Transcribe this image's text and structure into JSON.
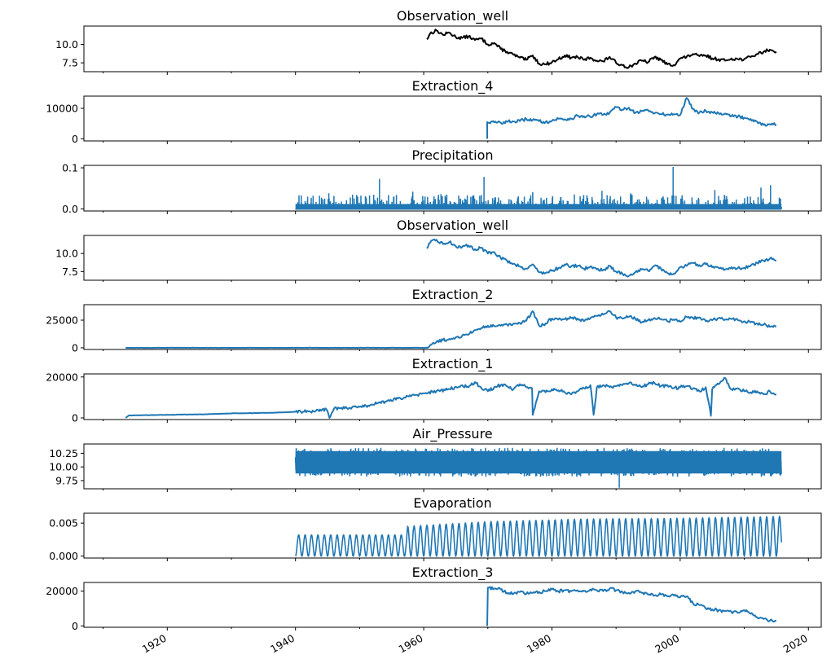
{
  "chart_data": [
    {
      "type": "line",
      "title": "Observation_well",
      "color": "#000000",
      "xlim": [
        1907,
        2022
      ],
      "ylim": [
        6.3,
        12.5
      ],
      "yticks": [
        7.5,
        10.0
      ],
      "ytick_labels": [
        "7.5",
        "10.0"
      ],
      "series": [
        {
          "x": [
            1960.5,
            1961,
            1962,
            1963,
            1964,
            1965,
            1966,
            1967,
            1968,
            1969,
            1970,
            1971,
            1972,
            1973,
            1974,
            1975,
            1976,
            1977,
            1978,
            1979,
            1980,
            1981,
            1982,
            1983,
            1984,
            1985,
            1986,
            1987,
            1988,
            1989,
            1990,
            1991,
            1992,
            1993,
            1994,
            1995,
            1996,
            1997,
            1998,
            1999,
            2000,
            2001,
            2002,
            2003,
            2004,
            2005,
            2006,
            2007,
            2008,
            2009,
            2010,
            2011,
            2012,
            2013,
            2014,
            2015
          ],
          "y": [
            10.7,
            11.5,
            11.9,
            11.3,
            11.6,
            11.0,
            10.9,
            11.1,
            10.6,
            10.8,
            10.0,
            10.2,
            9.4,
            9.0,
            8.6,
            8.2,
            7.9,
            8.5,
            7.4,
            7.3,
            7.6,
            8.0,
            8.5,
            8.2,
            8.3,
            7.9,
            8.2,
            7.8,
            7.7,
            8.3,
            7.5,
            7.2,
            6.9,
            7.4,
            7.8,
            7.6,
            8.3,
            7.9,
            7.3,
            7.2,
            8.1,
            8.3,
            8.7,
            8.4,
            8.5,
            8.1,
            8.0,
            7.8,
            8.1,
            8.0,
            8.0,
            8.3,
            8.7,
            9.0,
            9.3,
            9.0
          ]
        }
      ]
    },
    {
      "type": "line",
      "title": "Extraction_4",
      "color": "#1f77b4",
      "xlim": [
        1907,
        2022
      ],
      "ylim": [
        -700,
        14000
      ],
      "yticks": [
        0,
        10000
      ],
      "ytick_labels": [
        "0",
        "10000"
      ],
      "series": [
        {
          "x": [
            1969.9,
            1969.9,
            1971,
            1972,
            1973,
            1974,
            1975,
            1976,
            1977,
            1978,
            1979,
            1980,
            1981,
            1982,
            1983,
            1984,
            1985,
            1986,
            1987,
            1988,
            1989,
            1990,
            1991,
            1992,
            1993,
            1994,
            1995,
            1996,
            1997,
            1998,
            1999,
            2000,
            2001,
            2002,
            2003,
            2004,
            2005,
            2006,
            2007,
            2008,
            2009,
            2010,
            2011,
            2012,
            2013,
            2014,
            2015
          ],
          "y": [
            0,
            5500,
            5400,
            5300,
            5600,
            5700,
            5800,
            6500,
            6200,
            5800,
            5500,
            5900,
            6600,
            6400,
            6600,
            7500,
            7400,
            7200,
            8100,
            7900,
            8500,
            10400,
            9500,
            10200,
            8500,
            9100,
            9400,
            8400,
            8100,
            7900,
            8100,
            7800,
            13400,
            9800,
            8600,
            9200,
            8700,
            8400,
            8300,
            7500,
            7300,
            6900,
            6500,
            5600,
            4600,
            4800,
            4700
          ]
        }
      ]
    },
    {
      "type": "line",
      "title": "Precipitation",
      "color": "#1f77b4",
      "xlim": [
        1907,
        2022
      ],
      "ylim": [
        -0.005,
        0.106
      ],
      "yticks": [
        0.0,
        0.1
      ],
      "ytick_labels": [
        "0.0",
        "0.1"
      ],
      "range": [
        1940,
        2015.8
      ],
      "spikes": [
        [
          1953.1,
          0.073
        ],
        [
          1969.4,
          0.078
        ],
        [
          1998.9,
          0.102
        ],
        [
          1945.2,
          0.038
        ],
        [
          1958.3,
          0.042
        ],
        [
          1962.7,
          0.036
        ],
        [
          1977.0,
          0.041
        ],
        [
          1983.5,
          0.035
        ],
        [
          1987.8,
          0.044
        ],
        [
          1992.3,
          0.038
        ],
        [
          2005.4,
          0.046
        ],
        [
          2012.6,
          0.052
        ],
        [
          2014.1,
          0.058
        ]
      ]
    },
    {
      "type": "line",
      "title": "Observation_well",
      "color": "#1f77b4",
      "xlim": [
        1907,
        2022
      ],
      "ylim": [
        6.3,
        12.5
      ],
      "yticks": [
        7.5,
        10.0
      ],
      "ytick_labels": [
        "7.5",
        "10.0"
      ],
      "series": [
        {
          "x": [
            1960.5,
            1961,
            1962,
            1963,
            1964,
            1965,
            1966,
            1967,
            1968,
            1969,
            1970,
            1971,
            1972,
            1973,
            1974,
            1975,
            1976,
            1977,
            1978,
            1979,
            1980,
            1981,
            1982,
            1983,
            1984,
            1985,
            1986,
            1987,
            1988,
            1989,
            1990,
            1991,
            1992,
            1993,
            1994,
            1995,
            1996,
            1997,
            1998,
            1999,
            2000,
            2001,
            2002,
            2003,
            2004,
            2005,
            2006,
            2007,
            2008,
            2009,
            2010,
            2011,
            2012,
            2013,
            2014,
            2015
          ],
          "y": [
            10.7,
            11.5,
            11.9,
            11.3,
            11.6,
            11.0,
            10.9,
            11.1,
            10.6,
            10.8,
            10.0,
            10.2,
            9.4,
            9.0,
            8.6,
            8.2,
            7.9,
            8.5,
            7.4,
            7.3,
            7.6,
            8.0,
            8.5,
            8.2,
            8.3,
            7.9,
            8.2,
            7.8,
            7.7,
            8.3,
            7.5,
            7.2,
            6.9,
            7.4,
            7.8,
            7.6,
            8.3,
            7.9,
            7.3,
            7.2,
            8.1,
            8.3,
            8.7,
            8.4,
            8.5,
            8.1,
            8.0,
            7.8,
            8.1,
            8.0,
            8.0,
            8.3,
            8.7,
            9.0,
            9.3,
            9.0
          ]
        }
      ]
    },
    {
      "type": "line",
      "title": "Extraction_2",
      "color": "#1f77b4",
      "xlim": [
        1907,
        2022
      ],
      "ylim": [
        -1500,
        39000
      ],
      "yticks": [
        0,
        25000
      ],
      "ytick_labels": [
        "0",
        "25000"
      ],
      "series": [
        {
          "x": [
            1913.5,
            1960.5,
            1961,
            1962,
            1963,
            1964,
            1965,
            1966,
            1967,
            1968,
            1969,
            1970,
            1971,
            1972,
            1973,
            1974,
            1975,
            1976,
            1977,
            1978,
            1979,
            1980,
            1981,
            1982,
            1983,
            1984,
            1985,
            1986,
            1987,
            1988,
            1989,
            1990,
            1991,
            1992,
            1993,
            1994,
            1995,
            1996,
            1997,
            1998,
            1999,
            2000,
            2001,
            2002,
            2003,
            2004,
            2005,
            2006,
            2007,
            2008,
            2009,
            2010,
            2011,
            2012,
            2013,
            2014,
            2015
          ],
          "y": [
            0,
            0,
            2500,
            5500,
            7000,
            8000,
            9500,
            11000,
            12000,
            16000,
            18000,
            20000,
            19500,
            20000,
            21000,
            22000,
            22500,
            24500,
            33000,
            20000,
            22000,
            26500,
            25500,
            26000,
            27000,
            26500,
            24000,
            27000,
            29000,
            30000,
            33000,
            27500,
            26500,
            28000,
            26500,
            23000,
            25000,
            27000,
            26000,
            24000,
            25500,
            23500,
            28000,
            27000,
            27500,
            24000,
            25000,
            27000,
            25500,
            26000,
            25000,
            24000,
            23000,
            22000,
            21000,
            19000,
            19500
          ]
        }
      ]
    },
    {
      "type": "line",
      "title": "Extraction_1",
      "color": "#1f77b4",
      "xlim": [
        1907,
        2022
      ],
      "ylim": [
        -800,
        21500
      ],
      "yticks": [
        0,
        20000
      ],
      "ytick_labels": [
        "0",
        "20000"
      ],
      "series": [
        {
          "x": [
            1913.5,
            1914,
            1916,
            1918,
            1920,
            1922,
            1924,
            1926,
            1928,
            1930,
            1932,
            1934,
            1936,
            1938,
            1940,
            1942,
            1944,
            1944.8,
            1945.3,
            1946,
            1948,
            1950,
            1952,
            1954,
            1956,
            1958,
            1960,
            1962,
            1964,
            1966,
            1967,
            1968,
            1969,
            1970,
            1971,
            1972,
            1973,
            1974,
            1975,
            1976,
            1976.9,
            1977,
            1978,
            1979,
            1980,
            1981,
            1982,
            1983,
            1984,
            1985,
            1986,
            1986.5,
            1987,
            1988,
            1989,
            1990,
            1991,
            1992,
            1993,
            1994,
            1995,
            1996,
            1997,
            1998,
            1999,
            2000,
            2001,
            2002,
            2003,
            2004,
            2004.8,
            2005,
            2006,
            2007,
            2008,
            2009,
            2010,
            2011,
            2012,
            2013,
            2014,
            2015
          ],
          "y": [
            0,
            1200,
            1300,
            1400,
            1500,
            1600,
            1700,
            1800,
            2000,
            2200,
            2300,
            2400,
            2500,
            2700,
            3000,
            3200,
            3500,
            4300,
            0,
            4500,
            4800,
            5400,
            6500,
            8000,
            9500,
            10500,
            12000,
            13000,
            14000,
            16000,
            15000,
            17500,
            14500,
            13000,
            15000,
            16000,
            15500,
            14000,
            16500,
            15000,
            14500,
            1500,
            13000,
            12500,
            14000,
            13500,
            12500,
            11500,
            13000,
            14500,
            16000,
            1500,
            15000,
            16000,
            15000,
            15500,
            16000,
            17000,
            16000,
            15000,
            16500,
            17000,
            15500,
            16000,
            14500,
            15000,
            15500,
            14500,
            13000,
            15000,
            1000,
            14000,
            16500,
            19500,
            14000,
            14500,
            13000,
            12500,
            13000,
            11500,
            13000,
            11500
          ]
        }
      ]
    },
    {
      "type": "line",
      "title": "Air_Pressure",
      "color": "#1f77b4",
      "xlim": [
        1907,
        2022
      ],
      "ylim": [
        9.6,
        10.42
      ],
      "yticks": [
        9.75,
        10.0,
        10.25
      ],
      "ytick_labels": [
        "9.75",
        "10.00",
        "10.25"
      ],
      "range": [
        1940,
        2015.8
      ],
      "band": [
        9.82,
        10.35
      ],
      "mean": 10.08,
      "min_spike": [
        1990.5,
        9.62
      ]
    },
    {
      "type": "line",
      "title": "Evaporation",
      "color": "#1f77b4",
      "xlim": [
        1907,
        2022
      ],
      "ylim": [
        -0.0003,
        0.0065
      ],
      "yticks": [
        0.0,
        0.005
      ],
      "ytick_labels": [
        "0.000",
        "0.005"
      ],
      "range": [
        1940,
        2015.8
      ],
      "seasonal_amplitude": [
        [
          1940,
          0.0032
        ],
        [
          1957.3,
          0.0032
        ],
        [
          1957.5,
          0.0045
        ],
        [
          1970,
          0.0052
        ],
        [
          1985,
          0.0056
        ],
        [
          2000,
          0.0057
        ],
        [
          2015.8,
          0.006
        ]
      ]
    },
    {
      "type": "line",
      "title": "Extraction_3",
      "color": "#1f77b4",
      "xlim": [
        1907,
        2022
      ],
      "ylim": [
        -800,
        25000
      ],
      "yticks": [
        0,
        20000
      ],
      "ytick_labels": [
        "0",
        "20000"
      ],
      "xticks": [
        1920,
        1940,
        1960,
        1980,
        2000,
        2020
      ],
      "xtick_labels": [
        "1920",
        "1940",
        "1960",
        "1980",
        "2000",
        "2020"
      ],
      "series": [
        {
          "x": [
            1969.9,
            1970,
            1971,
            1972,
            1973,
            1974,
            1975,
            1976,
            1977,
            1978,
            1979,
            1980,
            1981,
            1982,
            1983,
            1984,
            1985,
            1986,
            1987,
            1988,
            1989,
            1990,
            1991,
            1992,
            1993,
            1994,
            1995,
            1996,
            1997,
            1998,
            1999,
            2000,
            2001,
            2002,
            2003,
            2004,
            2005,
            2006,
            2007,
            2008,
            2009,
            2010,
            2011,
            2012,
            2013,
            2014,
            2015
          ],
          "y": [
            0,
            22000,
            21500,
            21000,
            19000,
            18500,
            19500,
            18500,
            19000,
            19500,
            20000,
            21000,
            20000,
            20500,
            20000,
            20500,
            20000,
            21000,
            20500,
            20000,
            21500,
            20500,
            19500,
            19000,
            20000,
            19000,
            18000,
            17500,
            18000,
            17000,
            17500,
            16500,
            17000,
            13000,
            12000,
            10000,
            9500,
            9000,
            8500,
            8000,
            7500,
            9000,
            7000,
            5000,
            4000,
            3000,
            3000
          ]
        }
      ]
    }
  ]
}
